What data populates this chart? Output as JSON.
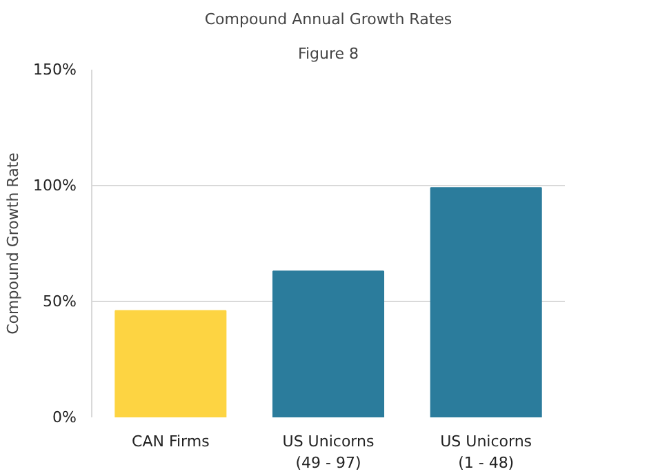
{
  "chart_data": {
    "type": "bar",
    "title": "Compound Annual Growth Rates",
    "subtitle": "Figure 8",
    "ylabel": "Compound Growth Rate",
    "categories": [
      "CAN Firms",
      "US Unicorns\n(49 - 97)",
      "US Unicorns\n(1 - 48)"
    ],
    "values": [
      46,
      63,
      99
    ],
    "colors": [
      "#fdd442",
      "#2b7c9c",
      "#2b7c9c"
    ],
    "ylim": [
      0,
      150
    ],
    "yticks": [
      {
        "value": 0,
        "label": "0%"
      },
      {
        "value": 50,
        "label": "50%"
      },
      {
        "value": 100,
        "label": "100%"
      },
      {
        "value": 150,
        "label": "150%"
      }
    ],
    "grid": "y"
  }
}
